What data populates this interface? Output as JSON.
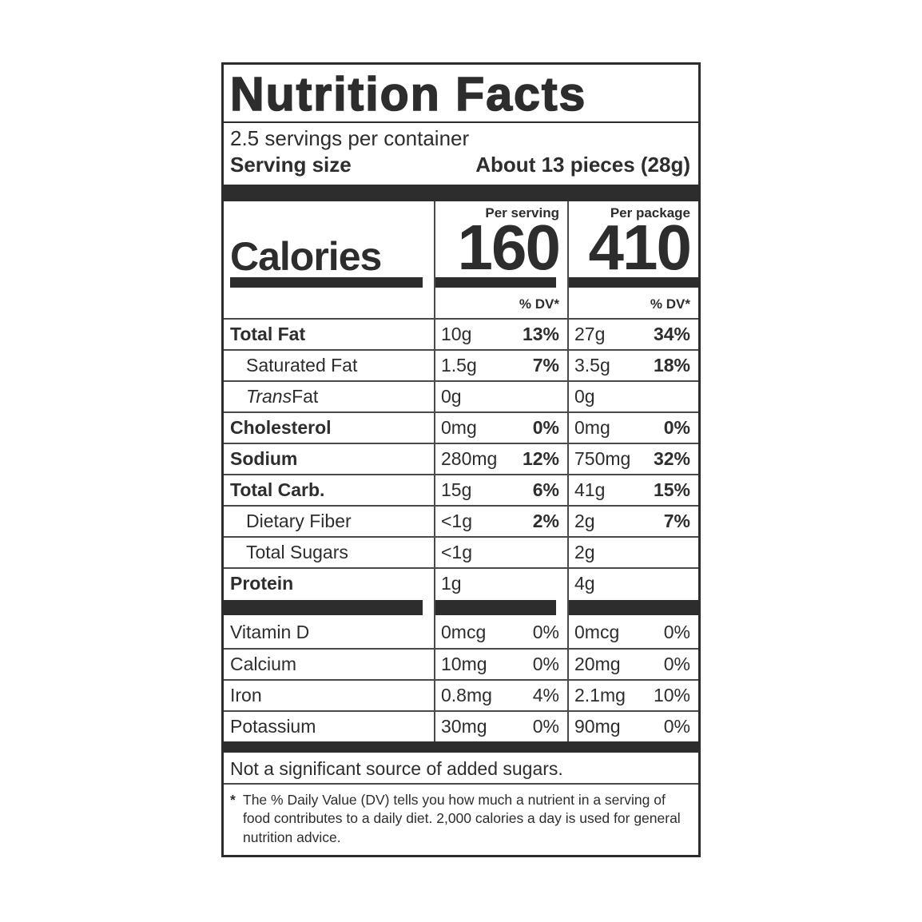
{
  "theme": {
    "ink": "#2d2d2d",
    "line": "#4a4a4a",
    "background": "#ffffff"
  },
  "label": {
    "title": "Nutrition Facts",
    "servings_per_container": "2.5 servings per container",
    "serving_size_label": "Serving size",
    "serving_size_value": "About 13 pieces (28g)",
    "calories_word": "Calories",
    "serving_col_header": "Per serving",
    "package_col_header": "Per package",
    "calories_per_serving": "160",
    "calories_per_package": "410",
    "dv_header_serving": "% DV*",
    "dv_header_package": "% DV*"
  },
  "nutrients": [
    {
      "name": "Total Fat",
      "serving_amount": "10g",
      "serving_dv": "13%",
      "package_amount": "27g",
      "package_dv": "34%"
    },
    {
      "name": "Saturated Fat",
      "serving_amount": "1.5g",
      "serving_dv": "7%",
      "package_amount": "3.5g",
      "package_dv": "18%"
    },
    {
      "name_italic": "Trans",
      "name": " Fat",
      "serving_amount": "0g",
      "serving_dv": "",
      "package_amount": "0g",
      "package_dv": ""
    },
    {
      "name": "Cholesterol",
      "serving_amount": "0mg",
      "serving_dv": "0%",
      "package_amount": "0mg",
      "package_dv": "0%"
    },
    {
      "name": "Sodium",
      "serving_amount": "280mg",
      "serving_dv": "12%",
      "package_amount": "750mg",
      "package_dv": "32%"
    },
    {
      "name": "Total Carb.",
      "serving_amount": "15g",
      "serving_dv": "6%",
      "package_amount": "41g",
      "package_dv": "15%"
    },
    {
      "name": "Dietary Fiber",
      "serving_amount": "<1g",
      "serving_dv": "2%",
      "package_amount": "2g",
      "package_dv": "7%"
    },
    {
      "name": "Total Sugars",
      "serving_amount": "<1g",
      "serving_dv": "",
      "package_amount": "2g",
      "package_dv": ""
    },
    {
      "name": "Protein",
      "serving_amount": "1g",
      "serving_dv": "",
      "package_amount": "4g",
      "package_dv": ""
    }
  ],
  "micronutrients": [
    {
      "name": "Vitamin D",
      "serving_amount": "0mcg",
      "serving_dv": "0%",
      "package_amount": "0mcg",
      "package_dv": "0%"
    },
    {
      "name": "Calcium",
      "serving_amount": "10mg",
      "serving_dv": "0%",
      "package_amount": "20mg",
      "package_dv": "0%"
    },
    {
      "name": "Iron",
      "serving_amount": "0.8mg",
      "serving_dv": "4%",
      "package_amount": "2.1mg",
      "package_dv": "10%"
    },
    {
      "name": "Potassium",
      "serving_amount": "30mg",
      "serving_dv": "0%",
      "package_amount": "90mg",
      "package_dv": "0%"
    }
  ],
  "note": "Not a significant source of added sugars.",
  "footnote_marker": "*",
  "footnote_text": "The % Daily Value (DV) tells you how much a nutrient in a serving of food contributes to a daily diet. 2,000 calories a day is used for general nutrition advice."
}
